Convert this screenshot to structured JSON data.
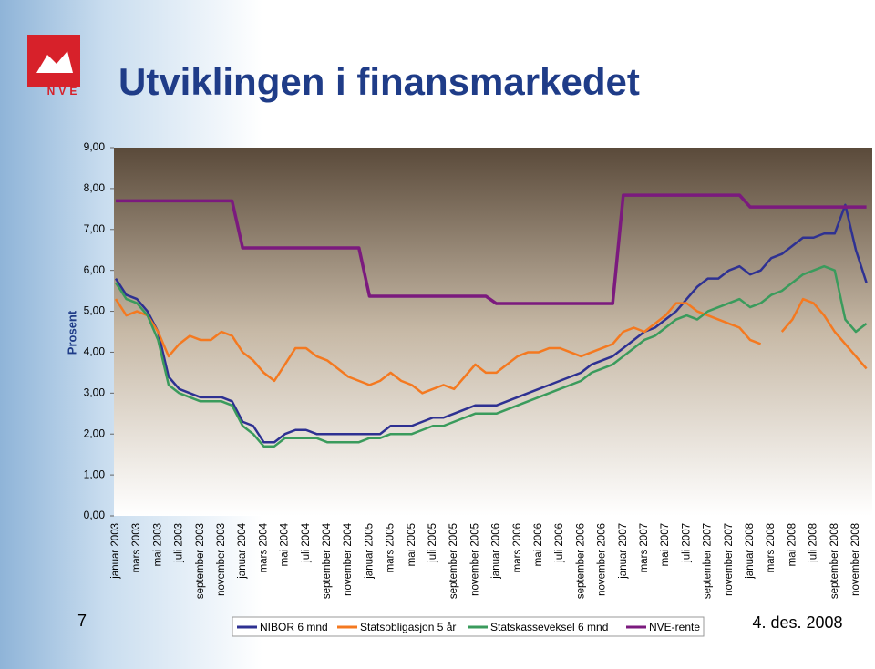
{
  "slide": {
    "title": "Utviklingen i finansmarkedet",
    "page_number": "7",
    "date": "4. des. 2008",
    "logo_text": "NVE"
  },
  "chart_data": {
    "type": "line",
    "y_label": "Prosent",
    "ylim": [
      0,
      9
    ],
    "yticks": [
      {
        "value": 0,
        "label": "0,00"
      },
      {
        "value": 1,
        "label": "1,00"
      },
      {
        "value": 2,
        "label": "2,00"
      },
      {
        "value": 3,
        "label": "3,00"
      },
      {
        "value": 4,
        "label": "4,00"
      },
      {
        "value": 5,
        "label": "5,00"
      },
      {
        "value": 6,
        "label": "6,00"
      },
      {
        "value": 7,
        "label": "7,00"
      },
      {
        "value": 8,
        "label": "8,00"
      },
      {
        "value": 9,
        "label": "9,00"
      }
    ],
    "grid": false,
    "categories": [
      "januar 2003",
      null,
      "mars 2003",
      null,
      "mai 2003",
      null,
      "juli 2003",
      null,
      "september 2003",
      null,
      "november 2003",
      null,
      "januar 2004",
      null,
      "mars 2004",
      null,
      "mai 2004",
      null,
      "juli 2004",
      null,
      "september 2004",
      null,
      "november 2004",
      null,
      "januar 2005",
      null,
      "mars 2005",
      null,
      "mai 2005",
      null,
      "juli 2005",
      null,
      "september 2005",
      null,
      "november 2005",
      null,
      "januar 2006",
      null,
      "mars 2006",
      null,
      "mai 2006",
      null,
      "juli 2006",
      null,
      "september 2006",
      null,
      "november 2006",
      null,
      "januar 2007",
      null,
      "mars 2007",
      null,
      "mai 2007",
      null,
      "juli 2007",
      null,
      "september 2007",
      null,
      "november 2007",
      null,
      "januar 2008",
      null,
      "mars 2008",
      null,
      "mai 2008",
      null,
      "juli 2008",
      null,
      "september 2008",
      null,
      "november 2008",
      null
    ],
    "series": [
      {
        "name": "NIBOR 6 mnd",
        "color": "#2e3192",
        "values": [
          5.8,
          5.4,
          5.3,
          5.0,
          4.5,
          3.4,
          3.1,
          3.0,
          2.9,
          2.9,
          2.9,
          2.8,
          2.3,
          2.2,
          1.8,
          1.8,
          2.0,
          2.1,
          2.1,
          2.0,
          2.0,
          2.0,
          2.0,
          2.0,
          2.0,
          2.0,
          2.2,
          2.2,
          2.2,
          2.3,
          2.4,
          2.4,
          2.5,
          2.6,
          2.7,
          2.7,
          2.7,
          2.8,
          2.9,
          3.0,
          3.1,
          3.2,
          3.3,
          3.4,
          3.5,
          3.7,
          3.8,
          3.9,
          4.1,
          4.3,
          4.5,
          4.6,
          4.8,
          5.0,
          5.3,
          5.6,
          5.8,
          5.8,
          6.0,
          6.1,
          5.9,
          6.0,
          6.3,
          6.4,
          6.6,
          6.8,
          6.8,
          6.9,
          6.9,
          7.6,
          6.5,
          5.7
        ]
      },
      {
        "name": "Statsobligasjon 5 år",
        "color": "#f47920",
        "values": [
          5.3,
          4.9,
          5.0,
          4.9,
          4.5,
          3.9,
          4.2,
          4.4,
          4.3,
          4.3,
          4.5,
          4.4,
          4.0,
          3.8,
          3.5,
          3.3,
          3.7,
          4.1,
          4.1,
          3.9,
          3.8,
          3.6,
          3.4,
          3.3,
          3.2,
          3.3,
          3.5,
          3.3,
          3.2,
          3.0,
          3.1,
          3.2,
          3.1,
          3.4,
          3.7,
          3.5,
          3.5,
          3.7,
          3.9,
          4.0,
          4.0,
          4.1,
          4.1,
          4.0,
          3.9,
          4.0,
          4.1,
          4.2,
          4.5,
          4.6,
          4.5,
          4.7,
          4.9,
          5.2,
          5.2,
          5.0,
          4.9,
          4.8,
          4.7,
          4.6,
          4.3,
          4.2,
          null,
          4.5,
          4.8,
          5.3,
          5.2,
          4.9,
          4.5,
          4.2,
          3.9,
          3.6
        ]
      },
      {
        "name": "Statskasseveksel 6 mnd",
        "color": "#3a9b5c",
        "values": [
          5.7,
          5.3,
          5.2,
          4.9,
          4.3,
          3.2,
          3.0,
          2.9,
          2.8,
          2.8,
          2.8,
          2.7,
          2.2,
          2.0,
          1.7,
          1.7,
          1.9,
          1.9,
          1.9,
          1.9,
          1.8,
          1.8,
          1.8,
          1.8,
          1.9,
          1.9,
          2.0,
          2.0,
          2.0,
          2.1,
          2.2,
          2.2,
          2.3,
          2.4,
          2.5,
          2.5,
          2.5,
          2.6,
          2.7,
          2.8,
          2.9,
          3.0,
          3.1,
          3.2,
          3.3,
          3.5,
          3.6,
          3.7,
          3.9,
          4.1,
          4.3,
          4.4,
          4.6,
          4.8,
          4.9,
          4.8,
          5.0,
          5.1,
          5.2,
          5.3,
          5.1,
          5.2,
          5.4,
          5.5,
          5.7,
          5.9,
          6.0,
          6.1,
          6.0,
          4.8,
          4.5,
          4.7
        ]
      },
      {
        "name": "NVE-rente",
        "color": "#7b1a7e",
        "values": [
          7.7,
          7.7,
          7.7,
          7.7,
          7.7,
          7.7,
          7.7,
          7.7,
          7.7,
          7.7,
          7.7,
          7.7,
          6.55,
          6.55,
          6.55,
          6.55,
          6.55,
          6.55,
          6.55,
          6.55,
          6.55,
          6.55,
          6.55,
          6.55,
          5.37,
          5.37,
          5.37,
          5.37,
          5.37,
          5.37,
          5.37,
          5.37,
          5.37,
          5.37,
          5.37,
          5.37,
          5.19,
          5.19,
          5.19,
          5.19,
          5.19,
          5.19,
          5.19,
          5.19,
          5.19,
          5.19,
          5.19,
          5.19,
          7.84,
          7.84,
          7.84,
          7.84,
          7.84,
          7.84,
          7.84,
          7.84,
          7.84,
          7.84,
          7.84,
          7.84,
          7.55,
          7.55,
          7.55,
          7.55,
          7.55,
          7.55,
          7.55,
          7.55,
          7.55,
          7.55,
          7.55,
          7.55
        ]
      }
    ]
  }
}
